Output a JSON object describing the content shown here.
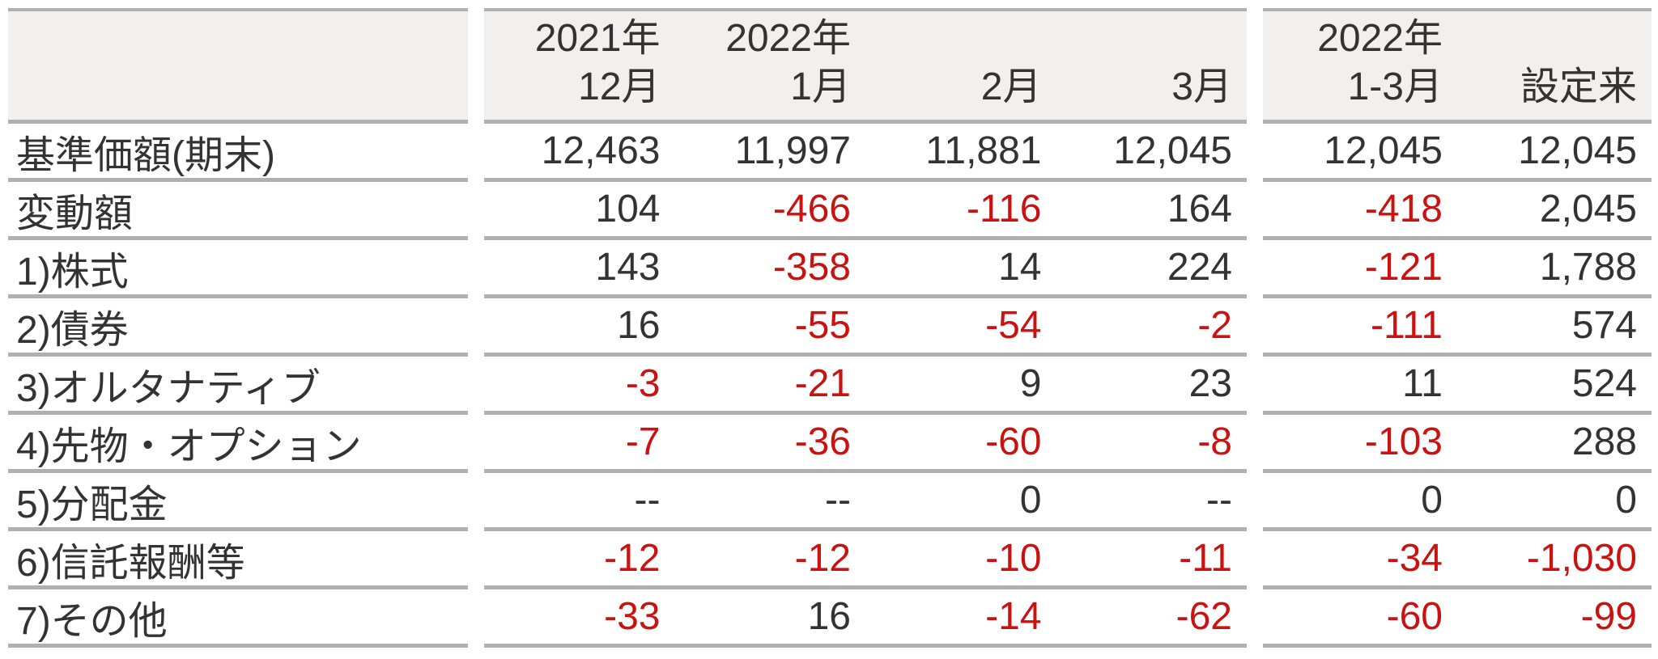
{
  "table": {
    "title": "fund-nav-attribution-table",
    "colors": {
      "negative": "#cc1111",
      "text": "#333333",
      "border": "#b0b0b0",
      "header_bg": "#f1f0ef"
    },
    "header": {
      "corner": "",
      "columns": [
        {
          "line1": "2021年",
          "line2": "12月"
        },
        {
          "line1": "2022年",
          "line2": "1月"
        },
        {
          "line1": "",
          "line2": "2月"
        },
        {
          "line1": "",
          "line2": "3月"
        },
        {
          "line1": "2022年",
          "line2": "1-3月"
        },
        {
          "line1": "",
          "line2": "設定来"
        }
      ]
    },
    "rows": [
      {
        "label": "基準価額(期末)",
        "values": [
          "12,463",
          "11,997",
          "11,881",
          "12,045",
          "12,045",
          "12,045"
        ]
      },
      {
        "label": "変動額",
        "values": [
          "104",
          "-466",
          "-116",
          "164",
          "-418",
          "2,045"
        ]
      },
      {
        "label": "1)株式",
        "values": [
          "143",
          "-358",
          "14",
          "224",
          "-121",
          "1,788"
        ]
      },
      {
        "label": "2)債券",
        "values": [
          "16",
          "-55",
          "-54",
          "-2",
          "-111",
          "574"
        ]
      },
      {
        "label": "3)オルタナティブ",
        "values": [
          "-3",
          "-21",
          "9",
          "23",
          "11",
          "524"
        ]
      },
      {
        "label": "4)先物・オプション",
        "values": [
          "-7",
          "-36",
          "-60",
          "-8",
          "-103",
          "288"
        ]
      },
      {
        "label": "5)分配金",
        "values": [
          "--",
          "--",
          "0",
          "--",
          "0",
          "0"
        ]
      },
      {
        "label": "6)信託報酬等",
        "values": [
          "-12",
          "-12",
          "-10",
          "-11",
          "-34",
          "-1,030"
        ]
      },
      {
        "label": "7)その他",
        "values": [
          "-33",
          "16",
          "-14",
          "-62",
          "-60",
          "-99"
        ]
      }
    ]
  }
}
